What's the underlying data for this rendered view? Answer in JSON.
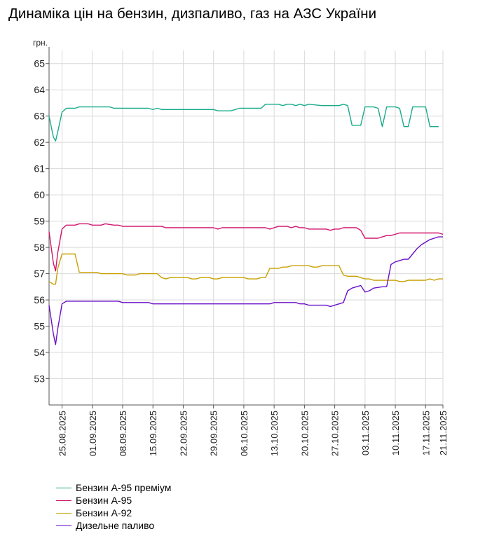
{
  "title": "Динаміка цін на бензин, дизпаливо, газ на АЗС України",
  "chart_data": {
    "type": "line",
    "title": "Динаміка цін на бензин, дизпаливо, газ на АЗС України",
    "ylabel": "грн.",
    "xlabel": "",
    "ylim": [
      52,
      65.5
    ],
    "yticks": [
      53,
      54,
      55,
      56,
      57,
      58,
      59,
      60,
      61,
      62,
      63,
      64,
      65
    ],
    "x_start_day": 22,
    "x_end_day": 113,
    "xtick_labels": [
      "25.08.2025",
      "01.09.2025",
      "08.09.2025",
      "15.09.2025",
      "22.09.2025",
      "29.09.2025",
      "06.10.2025",
      "13.10.2025",
      "20.10.2025",
      "27.10.2025",
      "03.11.2025",
      "10.11.2025",
      "17.11.2025",
      "21.11.2025"
    ],
    "xtick_days": [
      25,
      32,
      39,
      46,
      53,
      60,
      67,
      74,
      81,
      88,
      95,
      102,
      109,
      113
    ],
    "grid": true,
    "legend_position": "bottom-left",
    "series": [
      {
        "name": "Бензин А-95 преміум",
        "color": "#1aab8a",
        "points": [
          [
            22,
            63.0
          ],
          [
            23,
            62.2
          ],
          [
            23.5,
            62.05
          ],
          [
            24,
            62.4
          ],
          [
            25,
            63.15
          ],
          [
            26,
            63.3
          ],
          [
            28,
            63.3
          ],
          [
            29,
            63.35
          ],
          [
            31,
            63.35
          ],
          [
            36,
            63.35
          ],
          [
            37,
            63.3
          ],
          [
            45,
            63.3
          ],
          [
            46,
            63.25
          ],
          [
            47,
            63.3
          ],
          [
            48,
            63.25
          ],
          [
            53,
            63.25
          ],
          [
            59,
            63.25
          ],
          [
            60,
            63.25
          ],
          [
            61,
            63.2
          ],
          [
            64,
            63.2
          ],
          [
            65,
            63.25
          ],
          [
            66,
            63.3
          ],
          [
            68,
            63.3
          ],
          [
            71,
            63.3
          ],
          [
            72,
            63.45
          ],
          [
            75,
            63.45
          ],
          [
            76,
            63.4
          ],
          [
            77,
            63.45
          ],
          [
            78,
            63.45
          ],
          [
            79,
            63.4
          ],
          [
            80,
            63.45
          ],
          [
            81,
            63.4
          ],
          [
            82,
            63.45
          ],
          [
            85,
            63.4
          ],
          [
            89,
            63.4
          ],
          [
            90,
            63.45
          ],
          [
            91,
            63.4
          ],
          [
            92,
            62.65
          ],
          [
            93,
            62.65
          ],
          [
            94,
            62.65
          ],
          [
            95,
            63.35
          ],
          [
            96,
            63.35
          ],
          [
            97,
            63.35
          ],
          [
            98,
            63.3
          ],
          [
            99,
            62.6
          ],
          [
            100,
            63.35
          ],
          [
            101,
            63.35
          ],
          [
            102,
            63.35
          ],
          [
            103,
            63.3
          ],
          [
            104,
            62.6
          ],
          [
            105,
            62.6
          ],
          [
            106,
            63.35
          ],
          [
            107,
            63.35
          ],
          [
            109,
            63.35
          ],
          [
            110,
            62.6
          ],
          [
            112,
            62.6
          ]
        ]
      },
      {
        "name": "Бензин А-95",
        "color": "#d1166e",
        "points": [
          [
            22,
            58.6
          ],
          [
            23,
            57.4
          ],
          [
            23.5,
            57.1
          ],
          [
            24,
            57.8
          ],
          [
            25,
            58.7
          ],
          [
            26,
            58.85
          ],
          [
            28,
            58.85
          ],
          [
            29,
            58.9
          ],
          [
            31,
            58.9
          ],
          [
            32,
            58.85
          ],
          [
            34,
            58.85
          ],
          [
            35,
            58.9
          ],
          [
            37,
            58.85
          ],
          [
            38,
            58.85
          ],
          [
            39,
            58.8
          ],
          [
            45,
            58.8
          ],
          [
            48,
            58.8
          ],
          [
            49,
            58.75
          ],
          [
            53,
            58.75
          ],
          [
            59,
            58.75
          ],
          [
            60,
            58.75
          ],
          [
            61,
            58.7
          ],
          [
            62,
            58.75
          ],
          [
            69,
            58.75
          ],
          [
            72,
            58.75
          ],
          [
            73,
            58.7
          ],
          [
            75,
            58.8
          ],
          [
            77,
            58.8
          ],
          [
            78,
            58.75
          ],
          [
            79,
            58.8
          ],
          [
            80,
            58.75
          ],
          [
            81,
            58.75
          ],
          [
            82,
            58.7
          ],
          [
            83,
            58.7
          ],
          [
            86,
            58.7
          ],
          [
            87,
            58.65
          ],
          [
            88,
            58.7
          ],
          [
            89,
            58.7
          ],
          [
            90,
            58.75
          ],
          [
            93,
            58.75
          ],
          [
            94,
            58.65
          ],
          [
            95,
            58.35
          ],
          [
            96,
            58.35
          ],
          [
            98,
            58.35
          ],
          [
            99,
            58.4
          ],
          [
            100,
            58.45
          ],
          [
            101,
            58.45
          ],
          [
            103,
            58.55
          ],
          [
            104,
            58.55
          ],
          [
            112,
            58.55
          ],
          [
            113,
            58.5
          ]
        ]
      },
      {
        "name": "Бензин А-92",
        "color": "#c8a000",
        "points": [
          [
            22,
            56.7
          ],
          [
            23,
            56.6
          ],
          [
            23.5,
            56.6
          ],
          [
            24,
            57.2
          ],
          [
            25,
            57.75
          ],
          [
            26,
            57.75
          ],
          [
            28,
            57.75
          ],
          [
            29,
            57.05
          ],
          [
            31,
            57.05
          ],
          [
            33,
            57.05
          ],
          [
            34,
            57.0
          ],
          [
            38,
            57.0
          ],
          [
            39,
            57.0
          ],
          [
            40,
            56.95
          ],
          [
            42,
            56.95
          ],
          [
            43,
            57.0
          ],
          [
            46,
            57.0
          ],
          [
            47,
            57.0
          ],
          [
            48,
            56.85
          ],
          [
            49,
            56.8
          ],
          [
            50,
            56.85
          ],
          [
            54,
            56.85
          ],
          [
            55,
            56.8
          ],
          [
            56,
            56.8
          ],
          [
            57,
            56.85
          ],
          [
            59,
            56.85
          ],
          [
            60,
            56.8
          ],
          [
            61,
            56.8
          ],
          [
            62,
            56.85
          ],
          [
            64,
            56.85
          ],
          [
            66,
            56.85
          ],
          [
            67,
            56.85
          ],
          [
            68,
            56.8
          ],
          [
            70,
            56.8
          ],
          [
            71,
            56.85
          ],
          [
            72,
            56.85
          ],
          [
            73,
            57.2
          ],
          [
            75,
            57.2
          ],
          [
            76,
            57.25
          ],
          [
            77,
            57.25
          ],
          [
            78,
            57.3
          ],
          [
            82,
            57.3
          ],
          [
            83,
            57.25
          ],
          [
            84,
            57.25
          ],
          [
            85,
            57.3
          ],
          [
            86,
            57.3
          ],
          [
            89,
            57.3
          ],
          [
            90,
            56.95
          ],
          [
            91,
            56.9
          ],
          [
            93,
            56.9
          ],
          [
            95,
            56.8
          ],
          [
            96,
            56.8
          ],
          [
            97,
            56.75
          ],
          [
            100,
            56.75
          ],
          [
            101,
            56.75
          ],
          [
            102,
            56.75
          ],
          [
            103,
            56.7
          ],
          [
            104,
            56.7
          ],
          [
            105,
            56.75
          ],
          [
            108,
            56.75
          ],
          [
            109,
            56.75
          ],
          [
            110,
            56.8
          ],
          [
            111,
            56.75
          ],
          [
            112,
            56.8
          ],
          [
            113,
            56.8
          ]
        ]
      },
      {
        "name": "Дизельне паливо",
        "color": "#6a10c8",
        "points": [
          [
            22,
            55.8
          ],
          [
            23,
            54.7
          ],
          [
            23.5,
            54.3
          ],
          [
            24,
            54.9
          ],
          [
            25,
            55.85
          ],
          [
            26,
            55.95
          ],
          [
            28,
            55.95
          ],
          [
            29,
            55.95
          ],
          [
            31,
            55.95
          ],
          [
            36,
            55.95
          ],
          [
            37,
            55.95
          ],
          [
            38,
            55.95
          ],
          [
            39,
            55.9
          ],
          [
            45,
            55.9
          ],
          [
            46,
            55.85
          ],
          [
            52,
            55.85
          ],
          [
            53,
            55.85
          ],
          [
            59,
            55.85
          ],
          [
            60,
            55.85
          ],
          [
            66,
            55.85
          ],
          [
            67,
            55.85
          ],
          [
            72,
            55.85
          ],
          [
            73,
            55.85
          ],
          [
            74,
            55.9
          ],
          [
            76,
            55.9
          ],
          [
            77,
            55.9
          ],
          [
            79,
            55.9
          ],
          [
            80,
            55.85
          ],
          [
            81,
            55.85
          ],
          [
            82,
            55.8
          ],
          [
            85,
            55.8
          ],
          [
            86,
            55.8
          ],
          [
            87,
            55.75
          ],
          [
            88,
            55.8
          ],
          [
            89,
            55.85
          ],
          [
            90,
            55.9
          ],
          [
            91,
            56.35
          ],
          [
            92,
            56.45
          ],
          [
            93,
            56.5
          ],
          [
            94,
            56.55
          ],
          [
            95,
            56.3
          ],
          [
            96,
            56.35
          ],
          [
            97,
            56.45
          ],
          [
            99,
            56.5
          ],
          [
            100,
            56.5
          ],
          [
            101,
            57.35
          ],
          [
            102,
            57.45
          ],
          [
            103,
            57.5
          ],
          [
            104,
            57.55
          ],
          [
            105,
            57.55
          ],
          [
            106,
            57.75
          ],
          [
            107,
            57.95
          ],
          [
            108,
            58.1
          ],
          [
            109,
            58.2
          ],
          [
            110,
            58.3
          ],
          [
            111,
            58.35
          ],
          [
            112,
            58.4
          ],
          [
            113,
            58.4
          ]
        ]
      }
    ]
  }
}
